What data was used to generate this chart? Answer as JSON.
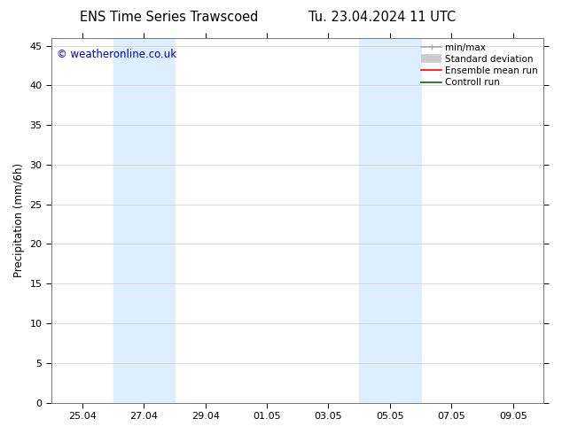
{
  "title_left": "ENS Time Series Trawscoed",
  "title_right": "Tu. 23.04.2024 11 UTC",
  "ylabel": "Precipitation (mm/6h)",
  "watermark": "© weatheronline.co.uk",
  "watermark_color": "#0000cc",
  "background_color": "#ffffff",
  "plot_bg_color": "#ffffff",
  "y_min": 0,
  "y_max": 46,
  "yticks": [
    0,
    5,
    10,
    15,
    20,
    25,
    30,
    35,
    40,
    45
  ],
  "x_tick_labels": [
    "25.04",
    "27.04",
    "29.04",
    "01.05",
    "03.05",
    "05.05",
    "07.05",
    "09.05"
  ],
  "x_tick_positions": [
    0,
    1,
    2,
    3,
    4,
    5,
    6,
    7
  ],
  "x_min": -0.5,
  "x_max": 7.5,
  "shaded_regions": [
    {
      "x_start": 0.5,
      "x_end": 1.5
    },
    {
      "x_start": 4.5,
      "x_end": 5.5
    }
  ],
  "shaded_color": "#ddeeff",
  "legend_entries": [
    {
      "label": "min/max",
      "color": "#aaaaaa",
      "lw": 1.2,
      "style": "line_with_caps"
    },
    {
      "label": "Standard deviation",
      "color": "#cccccc",
      "lw": 7,
      "style": "thick"
    },
    {
      "label": "Ensemble mean run",
      "color": "#ff0000",
      "lw": 1.2,
      "style": "line"
    },
    {
      "label": "Controll run",
      "color": "#006600",
      "lw": 1.2,
      "style": "line"
    }
  ],
  "title_fontsize": 10.5,
  "axis_fontsize": 8.5,
  "tick_fontsize": 8,
  "watermark_fontsize": 8.5,
  "legend_fontsize": 7.5
}
